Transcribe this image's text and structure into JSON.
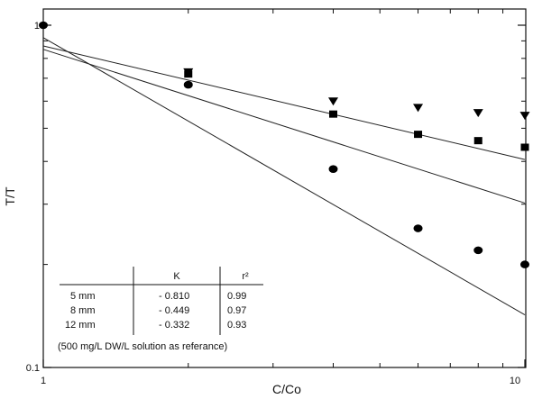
{
  "chart_data": {
    "type": "scatter",
    "title": "",
    "xlabel": "C/Co",
    "ylabel": "T/T",
    "xscale": "log",
    "yscale": "log",
    "xlim": [
      1,
      10
    ],
    "ylim": [
      0.1,
      1
    ],
    "x_ticks": [
      {
        "value": 1,
        "label": "1"
      },
      {
        "value": 10,
        "label": "10"
      }
    ],
    "y_ticks": [
      {
        "value": 0.1,
        "label": "0.1"
      },
      {
        "value": 1,
        "label": "1"
      }
    ],
    "grid": false,
    "series": [
      {
        "marker": "circle",
        "points": [
          [
            1,
            1.0
          ],
          [
            2,
            0.67
          ],
          [
            4,
            0.38
          ],
          [
            6,
            0.255
          ],
          [
            8,
            0.22
          ],
          [
            10,
            0.2
          ]
        ],
        "fit": {
          "slope": -0.81,
          "intercept": 0.92
        }
      },
      {
        "marker": "square",
        "points": [
          [
            2,
            0.72
          ],
          [
            4,
            0.55
          ],
          [
            6,
            0.48
          ],
          [
            8,
            0.46
          ],
          [
            10,
            0.44
          ]
        ],
        "fit": {
          "slope": -0.449,
          "intercept": 0.85
        }
      },
      {
        "marker": "triangle-down",
        "points": [
          [
            2,
            0.73
          ],
          [
            4,
            0.6
          ],
          [
            6,
            0.575
          ],
          [
            8,
            0.555
          ],
          [
            10,
            0.545
          ]
        ],
        "fit": {
          "slope": -0.332,
          "intercept": 0.87
        }
      }
    ],
    "table": {
      "headers": [
        "",
        "K",
        "r²"
      ],
      "rows": [
        [
          "5 mm",
          "- 0.810",
          "0.99"
        ],
        [
          "8 mm",
          "- 0.449",
          "0.97"
        ],
        [
          "12 mm",
          "- 0.332",
          "0.93"
        ]
      ],
      "note": "(500 mg/L DW/L solution as referance)"
    }
  }
}
